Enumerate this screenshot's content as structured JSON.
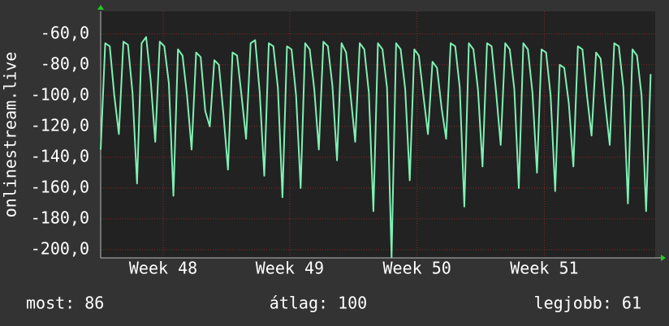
{
  "chart_data": {
    "type": "line",
    "y_label": "onlinestream.live",
    "x": [
      0,
      0.25,
      0.5,
      0.75,
      1,
      1.25,
      1.5,
      1.75,
      2,
      2.25,
      2.5,
      2.75,
      3,
      3.25,
      3.5,
      3.75,
      4,
      4.25,
      4.5,
      4.75,
      5,
      5.25,
      5.5,
      5.75,
      6,
      6.25,
      6.5,
      6.75,
      7,
      7.25,
      7.5,
      7.75,
      8,
      8.25,
      8.5,
      8.75,
      9,
      9.25,
      9.5,
      9.75,
      10,
      10.25,
      10.5,
      10.75,
      11,
      11.25,
      11.5,
      11.75,
      12,
      12.25,
      12.5,
      12.75,
      13,
      13.25,
      13.5,
      13.75,
      14,
      14.25,
      14.5,
      14.75,
      15,
      15.25,
      15.5,
      15.75,
      16,
      16.25,
      16.5,
      16.75,
      17,
      17.25,
      17.5,
      17.75,
      18,
      18.25,
      18.5,
      18.75,
      19,
      19.25,
      19.5,
      19.75,
      20,
      20.25,
      20.5,
      20.75,
      21,
      21.25,
      21.5,
      21.75,
      22,
      22.25,
      22.5,
      22.75,
      23,
      23.25,
      23.5,
      23.75,
      24,
      24.25,
      24.5,
      24.75,
      25,
      25.25,
      25.5,
      25.75,
      26,
      26.25,
      26.5,
      26.75,
      27,
      27.25,
      27.5,
      27.75,
      28,
      28.25,
      28.5,
      28.75,
      29,
      29.25,
      29.5,
      29.75,
      30,
      30.25
    ],
    "series": [
      {
        "color": "#7ff0b4",
        "values": [
          -135,
          -66,
          -68,
          -100,
          -125,
          -65,
          -67,
          -98,
          -157,
          -66,
          -62,
          -90,
          -130,
          -65,
          -68,
          -92,
          -165,
          -70,
          -74,
          -100,
          -135,
          -72,
          -75,
          -110,
          -120,
          -77,
          -80,
          -112,
          -148,
          -72,
          -74,
          -100,
          -128,
          -66,
          -64,
          -98,
          -152,
          -66,
          -68,
          -95,
          -166,
          -68,
          -70,
          -100,
          -160,
          -66,
          -70,
          -96,
          -135,
          -65,
          -68,
          -94,
          -142,
          -66,
          -72,
          -100,
          -130,
          -66,
          -70,
          -98,
          -175,
          -66,
          -70,
          -95,
          -205,
          -66,
          -70,
          -96,
          -155,
          -70,
          -74,
          -100,
          -125,
          -78,
          -82,
          -108,
          -128,
          -66,
          -68,
          -95,
          -172,
          -66,
          -70,
          -96,
          -146,
          -66,
          -68,
          -98,
          -132,
          -66,
          -70,
          -96,
          -160,
          -66,
          -70,
          -98,
          -150,
          -70,
          -72,
          -100,
          -162,
          -80,
          -82,
          -105,
          -146,
          -68,
          -70,
          -100,
          -126,
          -72,
          -76,
          -105,
          -132,
          -66,
          -68,
          -95,
          -170,
          -70,
          -74,
          -100,
          -175,
          -86
        ]
      }
    ],
    "xlim": [
      0,
      30.5
    ],
    "xticks": [
      {
        "value": 3.44,
        "label": "Week 48"
      },
      {
        "value": 10.4,
        "label": "Week 49"
      },
      {
        "value": 17.4,
        "label": "Week 50"
      },
      {
        "value": 24.4,
        "label": "Week 51"
      }
    ],
    "ylim": [
      -205.3,
      -45.3
    ],
    "yticks": [
      {
        "value": -60,
        "label": "-60,0"
      },
      {
        "value": -80,
        "label": "-80,0"
      },
      {
        "value": -100,
        "label": "-100,0"
      },
      {
        "value": -120,
        "label": "-120,0"
      },
      {
        "value": -140,
        "label": "-140,0"
      },
      {
        "value": -160,
        "label": "-160,0"
      },
      {
        "value": -180,
        "label": "-180,0"
      },
      {
        "value": -200,
        "label": "-200,0"
      }
    ],
    "grid": true,
    "footer": [
      "most: 86",
      "átlag: 100",
      "legjobb: 61"
    ]
  }
}
